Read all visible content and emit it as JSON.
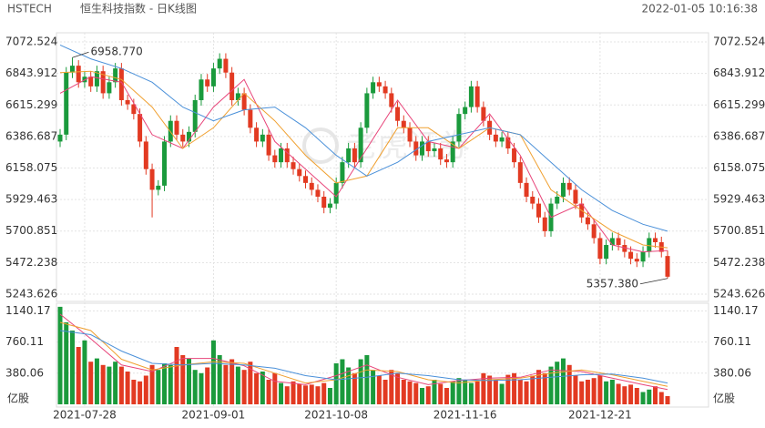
{
  "chart_data": {
    "type": "candlestick",
    "symbol": "HSTECH",
    "title": "恒生科技指数 - 日K线图",
    "timestamp": "2022-01-05 10:16:38",
    "watermark": "老虎证券",
    "volume_unit": "亿股",
    "up_color": "#1a9a3c",
    "down_color": "#e23a22",
    "categories": [
      null,
      null,
      null,
      null,
      "2021-07-28",
      null,
      null,
      null,
      null,
      null,
      null,
      null,
      null,
      null,
      null,
      null,
      null,
      null,
      null,
      null,
      null,
      null,
      null,
      null,
      null,
      "2021-09-01",
      null,
      null,
      null,
      null,
      null,
      null,
      null,
      null,
      null,
      null,
      null,
      null,
      null,
      null,
      null,
      null,
      null,
      null,
      null,
      "2021-10-08",
      null,
      null,
      null,
      null,
      null,
      null,
      null,
      null,
      null,
      null,
      null,
      null,
      null,
      null,
      null,
      null,
      null,
      null,
      null,
      null,
      "2021-11-16",
      null,
      null,
      null,
      null,
      null,
      null,
      null,
      null,
      null,
      null,
      null,
      null,
      null,
      null,
      null,
      null,
      null,
      null,
      null,
      null,
      null,
      "2021-12-21",
      null,
      null,
      null,
      null,
      null,
      null,
      null,
      null,
      null,
      null,
      null
    ],
    "open": [
      6350,
      6400,
      6850,
      6900,
      6780,
      6820,
      6750,
      6860,
      6700,
      6780,
      6880,
      6650,
      6620,
      6550,
      6350,
      6150,
      6000,
      6030,
      6350,
      6500,
      6400,
      6350,
      6420,
      6650,
      6800,
      6750,
      6880,
      6950,
      6850,
      6650,
      6700,
      6580,
      6450,
      6350,
      6400,
      6250,
      6200,
      6300,
      6200,
      6150,
      6100,
      6050,
      6000,
      5950,
      5870,
      5900,
      6050,
      6200,
      6300,
      6200,
      6450,
      6700,
      6780,
      6750,
      6700,
      6600,
      6500,
      6450,
      6350,
      6250,
      6350,
      6280,
      6300,
      6220,
      6200,
      6350,
      6550,
      6600,
      6750,
      6600,
      6500,
      6400,
      6350,
      6380,
      6300,
      6200,
      6050,
      5950,
      5900,
      5800,
      5700,
      5900,
      5950,
      6050,
      6000,
      5900,
      5800,
      5750,
      5650,
      5500,
      5600,
      5650,
      5600,
      5550,
      5500,
      5480,
      5550,
      5650,
      5620,
      5520
    ],
    "high": [
      6440,
      6890,
      6958.77,
      6940,
      6860,
      6860,
      6900,
      6900,
      6820,
      6920,
      6920,
      6690,
      6660,
      6590,
      6390,
      6190,
      6070,
      6390,
      6540,
      6540,
      6440,
      6460,
      6690,
      6840,
      6840,
      6920,
      6990,
      6990,
      6890,
      6740,
      6740,
      6620,
      6490,
      6440,
      6440,
      6290,
      6340,
      6340,
      6240,
      6190,
      6140,
      6090,
      6040,
      5990,
      5940,
      6090,
      6240,
      6340,
      6340,
      6490,
      6740,
      6820,
      6820,
      6790,
      6740,
      6640,
      6540,
      6490,
      6390,
      6390,
      6390,
      6340,
      6340,
      6260,
      6390,
      6590,
      6640,
      6790,
      6790,
      6640,
      6540,
      6440,
      6420,
      6420,
      6340,
      6240,
      6090,
      5990,
      5940,
      5840,
      5940,
      5990,
      6090,
      6090,
      6040,
      5940,
      5840,
      5790,
      5690,
      5640,
      5690,
      5690,
      5640,
      5590,
      5540,
      5590,
      5690,
      5690,
      5660,
      5560
    ],
    "low": [
      6310,
      6360,
      6810,
      6740,
      6740,
      6710,
      6710,
      6660,
      6660,
      6740,
      6610,
      6580,
      6510,
      6310,
      6110,
      5800,
      5960,
      5990,
      6310,
      6360,
      6310,
      6310,
      6380,
      6610,
      6710,
      6710,
      6840,
      6810,
      6610,
      6610,
      6540,
      6410,
      6310,
      6310,
      6210,
      6160,
      6160,
      6160,
      6110,
      6060,
      6010,
      5960,
      5910,
      5830,
      5830,
      5860,
      6010,
      6160,
      6160,
      6160,
      6410,
      6660,
      6710,
      6660,
      6560,
      6460,
      6410,
      6310,
      6210,
      6210,
      6240,
      6240,
      6180,
      6160,
      6160,
      6310,
      6510,
      6560,
      6560,
      6460,
      6360,
      6310,
      6310,
      6260,
      6160,
      6010,
      5910,
      5860,
      5760,
      5660,
      5660,
      5860,
      5910,
      5960,
      5860,
      5760,
      5710,
      5610,
      5460,
      5460,
      5560,
      5560,
      5510,
      5460,
      5440,
      5440,
      5510,
      5580,
      5510,
      5357.38
    ],
    "close": [
      6400,
      6850,
      6900,
      6780,
      6820,
      6750,
      6860,
      6700,
      6780,
      6880,
      6650,
      6620,
      6550,
      6350,
      6150,
      6000,
      6030,
      6350,
      6500,
      6400,
      6350,
      6420,
      6650,
      6800,
      6750,
      6880,
      6950,
      6850,
      6650,
      6700,
      6580,
      6450,
      6350,
      6400,
      6250,
      6200,
      6300,
      6200,
      6150,
      6100,
      6050,
      6000,
      5950,
      5870,
      5900,
      6050,
      6200,
      6300,
      6200,
      6450,
      6700,
      6780,
      6750,
      6700,
      6600,
      6500,
      6450,
      6350,
      6250,
      6350,
      6280,
      6300,
      6220,
      6200,
      6350,
      6550,
      6600,
      6750,
      6600,
      6500,
      6400,
      6350,
      6380,
      6300,
      6200,
      6050,
      5950,
      5900,
      5800,
      5700,
      5900,
      5950,
      6050,
      6000,
      5900,
      5800,
      5750,
      5650,
      5500,
      5600,
      5650,
      5600,
      5550,
      5500,
      5480,
      5550,
      5650,
      5620,
      5550,
      5370
    ],
    "volume": [
      1190,
      1000,
      900,
      700,
      780,
      520,
      560,
      480,
      460,
      520,
      460,
      400,
      300,
      280,
      350,
      480,
      420,
      500,
      480,
      700,
      600,
      560,
      420,
      380,
      450,
      780,
      600,
      480,
      550,
      460,
      420,
      520,
      380,
      400,
      300,
      380,
      260,
      220,
      280,
      250,
      230,
      240,
      220,
      260,
      200,
      500,
      550,
      450,
      380,
      550,
      600,
      420,
      350,
      300,
      420,
      380,
      300,
      280,
      260,
      200,
      220,
      300,
      250,
      200,
      280,
      320,
      300,
      260,
      280,
      380,
      350,
      300,
      250,
      360,
      380,
      300,
      280,
      350,
      420,
      380,
      460,
      520,
      560,
      480,
      350,
      280,
      300,
      320,
      350,
      280,
      300,
      250,
      220,
      240,
      200,
      150,
      180,
      220,
      150,
      100
    ],
    "ylim": [
      5243.626,
      7072.524
    ],
    "yticks": [
      7072.524,
      6843.912,
      6615.299,
      6386.687,
      6158.075,
      5929.463,
      5700.851,
      5472.238,
      5243.626
    ],
    "vlim": [
      0,
      1200
    ],
    "vticks": [
      1140.17,
      760.11,
      380.06
    ],
    "annotations": [
      {
        "value": 6958.77,
        "label": "6958.770"
      },
      {
        "value": 5357.38,
        "label": "5357.380"
      }
    ],
    "ma_x": [
      0,
      5,
      10,
      15,
      20,
      25,
      30,
      35,
      40,
      45,
      50,
      55,
      60,
      65,
      70,
      75,
      80,
      85,
      90,
      95,
      99
    ],
    "ma_lines": [
      {
        "color": "#e8457a",
        "values": [
          6700,
          6820,
          6780,
          6400,
          6300,
          6600,
          6800,
          6350,
          6150,
          5950,
          6300,
          6650,
          6350,
          6300,
          6550,
          6250,
          5800,
          5900,
          5600,
          5550,
          5560
        ]
      },
      {
        "color": "#f0a030",
        "values": [
          6850,
          6860,
          6800,
          6600,
          6300,
          6450,
          6700,
          6500,
          6250,
          6050,
          6100,
          6450,
          6450,
          6300,
          6450,
          6400,
          6000,
          5850,
          5700,
          5600,
          5580
        ]
      },
      {
        "color": "#4a90d9",
        "values": [
          7050,
          6950,
          6880,
          6780,
          6600,
          6500,
          6580,
          6600,
          6450,
          6250,
          6100,
          6200,
          6350,
          6400,
          6450,
          6400,
          6200,
          6000,
          5850,
          5750,
          5700
        ]
      }
    ],
    "volume_ma_lines": [
      {
        "color": "#e8457a",
        "values": [
          1100,
          800,
          480,
          400,
          560,
          560,
          470,
          280,
          240,
          350,
          480,
          330,
          240,
          290,
          320,
          330,
          420,
          400,
          320,
          240,
          180
        ]
      },
      {
        "color": "#f0a030",
        "values": [
          1000,
          900,
          550,
          420,
          480,
          520,
          500,
          380,
          260,
          300,
          420,
          400,
          300,
          260,
          300,
          320,
          380,
          420,
          360,
          280,
          220
        ]
      },
      {
        "color": "#4a90d9",
        "values": [
          900,
          850,
          650,
          500,
          480,
          500,
          480,
          440,
          350,
          300,
          330,
          380,
          350,
          300,
          290,
          300,
          330,
          360,
          370,
          320,
          260
        ]
      }
    ]
  }
}
